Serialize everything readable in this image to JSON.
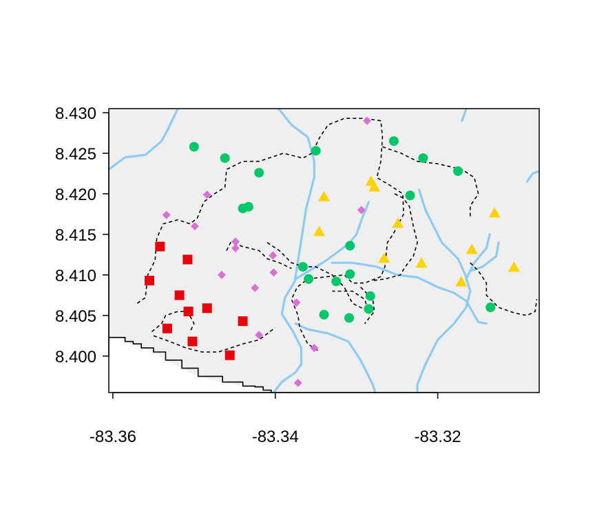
{
  "chart_data": {
    "type": "scatter",
    "xlim": [
      -83.3605,
      -83.3075
    ],
    "ylim": [
      8.3955,
      8.4305
    ],
    "x_ticks": [
      {
        "value": -83.36,
        "label": "-83.36"
      },
      {
        "value": -83.34,
        "label": "-83.34"
      },
      {
        "value": -83.32,
        "label": "-83.32"
      }
    ],
    "y_ticks": [
      {
        "value": 8.4,
        "label": "8.400"
      },
      {
        "value": 8.405,
        "label": "8.405"
      },
      {
        "value": 8.41,
        "label": "8.410"
      },
      {
        "value": 8.415,
        "label": "8.415"
      },
      {
        "value": 8.42,
        "label": "8.420"
      },
      {
        "value": 8.425,
        "label": "8.425"
      },
      {
        "value": 8.43,
        "label": "8.430"
      }
    ],
    "colors": {
      "land": "#efefef",
      "river": "#8ecbf2",
      "trail": "#000000",
      "boundary": "#000000"
    },
    "series": [
      {
        "shape": "square",
        "color": "#e8000b",
        "points": [
          [
            -83.3555,
            8.4093
          ],
          [
            -83.3542,
            8.4135
          ],
          [
            -83.3533,
            8.4034
          ],
          [
            -83.3518,
            8.4075
          ],
          [
            -83.3508,
            8.4119
          ],
          [
            -83.3507,
            8.4055
          ],
          [
            -83.3502,
            8.4018
          ],
          [
            -83.3484,
            8.4059
          ],
          [
            -83.3456,
            8.4001
          ],
          [
            -83.344,
            8.4043
          ]
        ]
      },
      {
        "shape": "circle",
        "color": "#00c86a",
        "points": [
          [
            -83.35,
            8.4258
          ],
          [
            -83.3462,
            8.4244
          ],
          [
            -83.344,
            8.4182
          ],
          [
            -83.3433,
            8.4184
          ],
          [
            -83.342,
            8.4226
          ],
          [
            -83.3366,
            8.411
          ],
          [
            -83.3359,
            8.4095
          ],
          [
            -83.335,
            8.4253
          ],
          [
            -83.334,
            8.4051
          ],
          [
            -83.3325,
            8.4092
          ],
          [
            -83.3309,
            8.4047
          ],
          [
            -83.3308,
            8.4136
          ],
          [
            -83.3308,
            8.4101
          ],
          [
            -83.3285,
            8.4058
          ],
          [
            -83.3283,
            8.4074
          ],
          [
            -83.3254,
            8.4265
          ],
          [
            -83.3234,
            8.4198
          ],
          [
            -83.3218,
            8.4244
          ],
          [
            -83.3175,
            8.4228
          ],
          [
            -83.3135,
            8.406
          ]
        ]
      },
      {
        "shape": "triangle",
        "color": "#ffd200",
        "points": [
          [
            -83.3346,
            8.4153
          ],
          [
            -83.334,
            8.4196
          ],
          [
            -83.3282,
            8.4215
          ],
          [
            -83.3278,
            8.4208
          ],
          [
            -83.3266,
            8.412
          ],
          [
            -83.3249,
            8.4163
          ],
          [
            -83.322,
            8.4114
          ],
          [
            -83.3171,
            8.4091
          ],
          [
            -83.3158,
            8.4131
          ],
          [
            -83.313,
            8.4176
          ],
          [
            -83.3106,
            8.4109
          ]
        ]
      },
      {
        "shape": "diamond",
        "color": "#da70d6",
        "points": [
          [
            -83.3534,
            8.4174
          ],
          [
            -83.3499,
            8.416
          ],
          [
            -83.3484,
            8.4199
          ],
          [
            -83.3466,
            8.41
          ],
          [
            -83.3449,
            8.4141
          ],
          [
            -83.3449,
            8.4133
          ],
          [
            -83.3425,
            8.4084
          ],
          [
            -83.342,
            8.4026
          ],
          [
            -83.3403,
            8.4124
          ],
          [
            -83.3402,
            8.4103
          ],
          [
            -83.3374,
            8.4066
          ],
          [
            -83.3372,
            8.3967
          ],
          [
            -83.3352,
            8.401
          ],
          [
            -83.3294,
            8.418
          ],
          [
            -83.3287,
            8.429
          ]
        ]
      }
    ],
    "rivers": [
      [
        [
          -83.3605,
          8.423
        ],
        [
          -83.3585,
          8.4245
        ],
        [
          -83.356,
          8.4248
        ],
        [
          -83.354,
          8.4265
        ],
        [
          -83.3532,
          8.428
        ],
        [
          -83.352,
          8.4305
        ]
      ],
      [
        [
          -83.3396,
          8.4305
        ],
        [
          -83.338,
          8.4285
        ],
        [
          -83.336,
          8.427
        ],
        [
          -83.3352,
          8.424
        ],
        [
          -83.3352,
          8.422
        ],
        [
          -83.3362,
          8.4182
        ],
        [
          -83.337,
          8.413
        ],
        [
          -83.3376,
          8.4092
        ],
        [
          -83.3388,
          8.4072
        ],
        [
          -83.3392,
          8.4052
        ],
        [
          -83.3378,
          8.403
        ],
        [
          -83.3368,
          8.401
        ],
        [
          -83.3368,
          8.399
        ],
        [
          -83.3375,
          8.398
        ],
        [
          -83.3392,
          8.3968
        ],
        [
          -83.3402,
          8.3955
        ]
      ],
      [
        [
          -83.3375,
          8.404
        ],
        [
          -83.336,
          8.4033
        ],
        [
          -83.3335,
          8.4028
        ],
        [
          -83.331,
          8.4018
        ],
        [
          -83.3295,
          8.3995
        ],
        [
          -83.328,
          8.3965
        ],
        [
          -83.3277,
          8.3955
        ]
      ],
      [
        [
          -83.3375,
          8.4095
        ],
        [
          -83.334,
          8.4116
        ],
        [
          -83.331,
          8.4138
        ],
        [
          -83.33,
          8.415
        ],
        [
          -83.3293,
          8.417
        ],
        [
          -83.3285,
          8.419
        ]
      ],
      [
        [
          -83.333,
          8.4115
        ],
        [
          -83.3305,
          8.4115
        ],
        [
          -83.3275,
          8.411
        ],
        [
          -83.325,
          8.41
        ],
        [
          -83.3225,
          8.4097
        ],
        [
          -83.32,
          8.4085
        ],
        [
          -83.318,
          8.4078
        ],
        [
          -83.3165,
          8.4068
        ],
        [
          -83.315,
          8.4042
        ],
        [
          -83.314,
          8.404
        ]
      ],
      [
        [
          -83.3223,
          8.4205
        ],
        [
          -83.3215,
          8.418
        ],
        [
          -83.3205,
          8.416
        ],
        [
          -83.3195,
          8.414
        ],
        [
          -83.3185,
          8.413
        ],
        [
          -83.3175,
          8.412
        ],
        [
          -83.3166,
          8.41
        ],
        [
          -83.316,
          8.408
        ],
        [
          -83.3165,
          8.406
        ],
        [
          -83.318,
          8.404
        ],
        [
          -83.32,
          8.402
        ],
        [
          -83.3215,
          8.399
        ],
        [
          -83.3225,
          8.3965
        ],
        [
          -83.3225,
          8.3955
        ]
      ],
      [
        [
          -83.3165,
          8.4095
        ],
        [
          -83.3155,
          8.4115
        ],
        [
          -83.314,
          8.4133
        ],
        [
          -83.3136,
          8.415
        ]
      ],
      [
        [
          -83.316,
          8.4105
        ],
        [
          -83.3145,
          8.411
        ],
        [
          -83.3128,
          8.4123
        ],
        [
          -83.3125,
          8.414
        ]
      ],
      [
        [
          -83.3165,
          8.4305
        ],
        [
          -83.317,
          8.429
        ]
      ],
      [
        [
          -83.309,
          8.4215
        ],
        [
          -83.3083,
          8.4225
        ],
        [
          -83.3075,
          8.4228
        ]
      ]
    ],
    "trails": [
      [
        [
          -83.357,
          8.4065
        ],
        [
          -83.356,
          8.4072
        ],
        [
          -83.3557,
          8.41
        ],
        [
          -83.3548,
          8.4118
        ],
        [
          -83.3546,
          8.4145
        ],
        [
          -83.3538,
          8.4163
        ],
        [
          -83.352,
          8.4168
        ],
        [
          -83.3505,
          8.4163
        ],
        [
          -83.3496,
          8.417
        ],
        [
          -83.3488,
          8.419
        ],
        [
          -83.3475,
          8.42
        ],
        [
          -83.3462,
          8.4208
        ],
        [
          -83.346,
          8.423
        ],
        [
          -83.344,
          8.424
        ],
        [
          -83.342,
          8.424
        ],
        [
          -83.339,
          8.425
        ],
        [
          -83.3366,
          8.4244
        ],
        [
          -83.3355,
          8.425
        ],
        [
          -83.3345,
          8.427
        ],
        [
          -83.3335,
          8.4285
        ],
        [
          -83.3315,
          8.4293
        ],
        [
          -83.329,
          8.4293
        ],
        [
          -83.327,
          8.429
        ],
        [
          -83.3268,
          8.427
        ],
        [
          -83.327,
          8.424
        ],
        [
          -83.3275,
          8.422
        ],
        [
          -83.3258,
          8.421
        ],
        [
          -83.3243,
          8.42
        ],
        [
          -83.3242,
          8.4175
        ],
        [
          -83.3255,
          8.415
        ],
        [
          -83.3262,
          8.414
        ],
        [
          -83.3265,
          8.411
        ],
        [
          -83.327,
          8.4098
        ],
        [
          -83.329,
          8.409
        ],
        [
          -83.3305,
          8.409
        ],
        [
          -83.3315,
          8.41
        ],
        [
          -83.3335,
          8.4098
        ],
        [
          -83.336,
          8.4095
        ],
        [
          -83.3373,
          8.4085
        ],
        [
          -83.338,
          8.407
        ],
        [
          -83.3372,
          8.405
        ],
        [
          -83.337,
          8.4035
        ],
        [
          -83.336,
          8.4015
        ],
        [
          -83.3345,
          8.4005
        ]
      ],
      [
        [
          -83.3268,
          8.4258
        ],
        [
          -83.3245,
          8.425
        ],
        [
          -83.3225,
          8.424
        ],
        [
          -83.32,
          8.4237
        ],
        [
          -83.317,
          8.423
        ],
        [
          -83.3155,
          8.422
        ],
        [
          -83.315,
          8.42
        ],
        [
          -83.316,
          8.4185
        ],
        [
          -83.316,
          8.417
        ]
      ],
      [
        [
          -83.3253,
          8.42
        ],
        [
          -83.3243,
          8.4195
        ],
        [
          -83.3235,
          8.4185
        ],
        [
          -83.323,
          8.416
        ],
        [
          -83.3225,
          8.414
        ],
        [
          -83.323,
          8.4123
        ],
        [
          -83.324,
          8.411
        ],
        [
          -83.3246,
          8.41
        ],
        [
          -83.3265,
          8.4095
        ],
        [
          -83.328,
          8.4093
        ]
      ],
      [
        [
          -83.341,
          8.414
        ],
        [
          -83.3395,
          8.413
        ],
        [
          -83.338,
          8.4115
        ],
        [
          -83.3365,
          8.411
        ],
        [
          -83.335,
          8.411
        ],
        [
          -83.333,
          8.41
        ],
        [
          -83.3315,
          8.4085
        ],
        [
          -83.3305,
          8.4065
        ],
        [
          -83.3285,
          8.4055
        ],
        [
          -83.329,
          8.407
        ],
        [
          -83.3305,
          8.408
        ],
        [
          -83.333,
          8.408
        ]
      ],
      [
        [
          -83.3552,
          8.403
        ],
        [
          -83.354,
          8.404
        ],
        [
          -83.3535,
          8.405
        ],
        [
          -83.352,
          8.4055
        ],
        [
          -83.3508,
          8.4055
        ],
        [
          -83.35,
          8.404
        ],
        [
          -83.3505,
          8.403
        ]
      ],
      [
        [
          -83.355,
          8.4025
        ],
        [
          -83.353,
          8.4018
        ],
        [
          -83.351,
          8.401
        ],
        [
          -83.349,
          8.4005
        ],
        [
          -83.347,
          8.4005
        ],
        [
          -83.3455,
          8.401
        ],
        [
          -83.344,
          8.4015
        ],
        [
          -83.342,
          8.402
        ],
        [
          -83.34,
          8.4035
        ]
      ],
      [
        [
          -83.346,
          8.413
        ],
        [
          -83.3455,
          8.414
        ],
        [
          -83.344,
          8.4135
        ],
        [
          -83.342,
          8.413
        ],
        [
          -83.341,
          8.412
        ],
        [
          -83.3395,
          8.4115
        ],
        [
          -83.338,
          8.4108
        ]
      ],
      [
        [
          -83.3295,
          8.4085
        ],
        [
          -83.328,
          8.407
        ],
        [
          -83.3278,
          8.4055
        ],
        [
          -83.329,
          8.404
        ]
      ],
      [
        [
          -83.316,
          8.4115
        ],
        [
          -83.315,
          8.4105
        ],
        [
          -83.314,
          8.409
        ],
        [
          -83.314,
          8.4075
        ],
        [
          -83.3125,
          8.406
        ],
        [
          -83.3105,
          8.4053
        ],
        [
          -83.309,
          8.405
        ],
        [
          -83.308,
          8.4055
        ],
        [
          -83.3078,
          8.407
        ]
      ]
    ],
    "boundary": [
      [
        -83.3605,
        8.4023
      ],
      [
        -83.359,
        8.4023
      ],
      [
        -83.3585,
        8.4018
      ],
      [
        -83.3575,
        8.4015
      ],
      [
        -83.3565,
        8.401
      ],
      [
        -83.355,
        8.4005
      ],
      [
        -83.3535,
        8.3995
      ],
      [
        -83.3515,
        8.3985
      ],
      [
        -83.3495,
        8.3975
      ],
      [
        -83.3465,
        8.3968
      ],
      [
        -83.344,
        8.3963
      ],
      [
        -83.3425,
        8.3962
      ],
      [
        -83.3415,
        8.3958
      ],
      [
        -83.3405,
        8.3955
      ]
    ]
  }
}
